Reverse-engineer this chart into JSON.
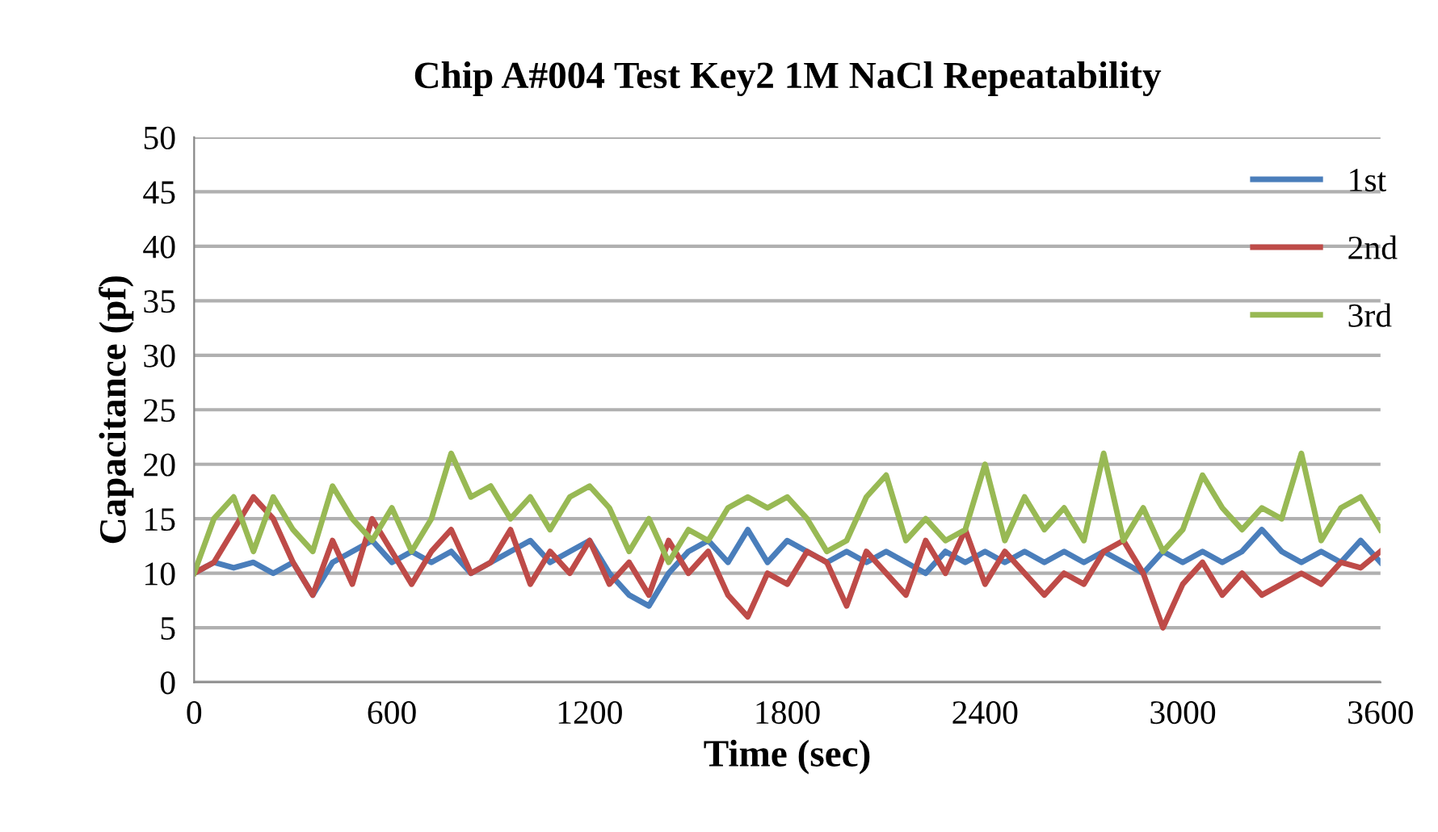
{
  "chart_data": {
    "type": "line",
    "title": "Chip A#004 Test Key2 1M NaCl Repeatability",
    "xlabel": "Time (sec)",
    "ylabel": "Capacitance (pf)",
    "x": [
      0,
      60,
      120,
      180,
      240,
      300,
      360,
      420,
      480,
      540,
      600,
      660,
      720,
      780,
      840,
      900,
      960,
      1020,
      1080,
      1140,
      1200,
      1260,
      1320,
      1380,
      1440,
      1500,
      1560,
      1620,
      1680,
      1740,
      1800,
      1860,
      1920,
      1980,
      2040,
      2100,
      2160,
      2220,
      2280,
      2340,
      2400,
      2460,
      2520,
      2580,
      2640,
      2700,
      2760,
      2820,
      2880,
      2940,
      3000,
      3060,
      3120,
      3180,
      3240,
      3300,
      3360,
      3420,
      3480,
      3540,
      3600
    ],
    "series": [
      {
        "name": "1st",
        "color": "#4a7ebb",
        "values": [
          10,
          11,
          10.5,
          11,
          10,
          11,
          8,
          11,
          12,
          13,
          11,
          12,
          11,
          12,
          10,
          11,
          12,
          13,
          11,
          12,
          13,
          10,
          8,
          7,
          10,
          12,
          13,
          11,
          14,
          11,
          13,
          12,
          11,
          12,
          11,
          12,
          11,
          10,
          12,
          11,
          12,
          11,
          12,
          11,
          12,
          11,
          12,
          11,
          10,
          12,
          11,
          12,
          11,
          12,
          14,
          12,
          11,
          12,
          11,
          13,
          11
        ]
      },
      {
        "name": "2nd",
        "color": "#be4b48",
        "values": [
          10,
          11,
          14,
          17,
          15,
          11,
          8,
          13,
          9,
          15,
          12,
          9,
          12,
          14,
          10,
          11,
          14,
          9,
          12,
          10,
          13,
          9,
          11,
          8,
          13,
          10,
          12,
          8,
          6,
          10,
          9,
          12,
          11,
          7,
          12,
          10,
          8,
          13,
          10,
          14,
          9,
          12,
          10,
          8,
          10,
          9,
          12,
          13,
          10,
          5,
          9,
          11,
          8,
          10,
          8,
          9,
          10,
          9,
          11,
          10.5,
          12
        ]
      },
      {
        "name": "3rd",
        "color": "#98b954",
        "values": [
          10,
          15,
          17,
          12,
          17,
          14,
          12,
          18,
          15,
          13,
          16,
          12,
          15,
          21,
          17,
          18,
          15,
          17,
          14,
          17,
          18,
          16,
          12,
          15,
          11,
          14,
          13,
          16,
          17,
          16,
          17,
          15,
          12,
          13,
          17,
          19,
          13,
          15,
          13,
          14,
          20,
          13,
          17,
          14,
          16,
          13,
          21,
          13,
          16,
          12,
          14,
          19,
          16,
          14,
          16,
          15,
          21,
          13,
          16,
          17,
          14
        ]
      }
    ],
    "xlim": [
      0,
      3600
    ],
    "xticks": [
      0,
      600,
      1200,
      1800,
      2400,
      3000,
      3600
    ],
    "ylim": [
      0,
      50
    ],
    "yticks": [
      0,
      5,
      10,
      15,
      20,
      25,
      30,
      35,
      40,
      45,
      50
    ],
    "grid": "y",
    "legend": "top right",
    "marker": "none",
    "line_style": "solid"
  }
}
